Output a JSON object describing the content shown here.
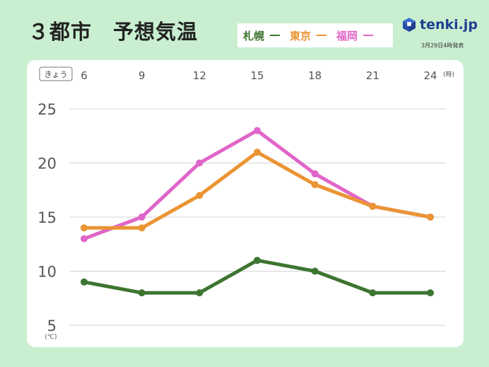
{
  "title": "３都市　予想気温",
  "brand": {
    "name": "tenki.jp",
    "date": "3月29日4時発表"
  },
  "legend": [
    {
      "label": "札幌",
      "color": "#3d7530"
    },
    {
      "label": "東京",
      "color": "#ea9433"
    },
    {
      "label": "福岡",
      "color": "#e065c8"
    }
  ],
  "chart_data": {
    "type": "line",
    "title": "３都市　予想気温",
    "x_prefix": "きょう",
    "x": [
      6,
      9,
      12,
      15,
      18,
      21,
      24
    ],
    "x_labels": [
      "6",
      "9",
      "12",
      "15",
      "18",
      "21",
      "24"
    ],
    "x_unit": "(時)",
    "y_ticks": [
      "25",
      "20",
      "15",
      "10",
      "5"
    ],
    "y_unit": "(℃)",
    "ylim": [
      5,
      25
    ],
    "grid": true,
    "series": [
      {
        "name": "札幌",
        "color": "#3d7530",
        "values": [
          9,
          8,
          8,
          11,
          10,
          8,
          8
        ]
      },
      {
        "name": "東京",
        "color": "#ea9433",
        "values": [
          14,
          14,
          17,
          21,
          18,
          16,
          15
        ]
      },
      {
        "name": "福岡",
        "color": "#e065c8",
        "values": [
          13,
          15,
          20,
          23,
          19,
          16,
          15
        ]
      }
    ]
  }
}
